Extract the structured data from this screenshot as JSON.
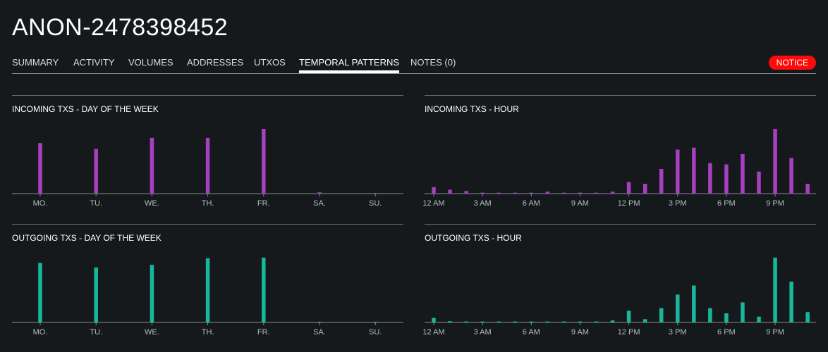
{
  "header": {
    "title": "ANON-2478398452"
  },
  "tabs": [
    {
      "label": "SUMMARY"
    },
    {
      "label": "ACTIVITY"
    },
    {
      "label": "VOLUMES"
    },
    {
      "label": "ADDRESSES"
    },
    {
      "label": "UTXOS"
    },
    {
      "label": "TEMPORAL PATTERNS"
    },
    {
      "label": "NOTES (0)"
    }
  ],
  "active_tab": "TEMPORAL PATTERNS",
  "notice": {
    "label": "NOTICE",
    "color": "#ff0a0a"
  },
  "colors": {
    "incoming": "#a63fc0",
    "outgoing": "#17b89a",
    "background": "#16191c"
  },
  "chart_data": [
    {
      "type": "bar",
      "title": "INCOMING TXS - DAY OF THE WEEK",
      "categories": [
        "MO.",
        "TU.",
        "WE.",
        "TH.",
        "FR.",
        "SA.",
        "SU."
      ],
      "values": [
        78,
        69,
        86,
        86,
        100,
        2,
        0.5
      ],
      "color": "#a63fc0",
      "grid": false,
      "legend": "none"
    },
    {
      "type": "bar",
      "title": "INCOMING TXS - HOUR",
      "categories": [
        "12 AM",
        "1 AM",
        "2 AM",
        "3 AM",
        "4 AM",
        "5 AM",
        "6 AM",
        "7 AM",
        "8 AM",
        "9 AM",
        "10 AM",
        "11 AM",
        "12 PM",
        "1 PM",
        "2 PM",
        "3 PM",
        "4 PM",
        "5 PM",
        "6 PM",
        "7 PM",
        "8 PM",
        "9 PM",
        "10 PM",
        "11 PM"
      ],
      "tick_labels": [
        "12 AM",
        "3 AM",
        "6 AM",
        "9 AM",
        "12 PM",
        "3 PM",
        "6 PM",
        "9 PM"
      ],
      "values": [
        10,
        6,
        4,
        1.5,
        1.5,
        1.5,
        1.5,
        3,
        1.5,
        1.5,
        1.5,
        3,
        18,
        15,
        38,
        68,
        71,
        47,
        45,
        61,
        34,
        100,
        55,
        15
      ],
      "color": "#a63fc0",
      "grid": false,
      "legend": "none"
    },
    {
      "type": "bar",
      "title": "OUTGOING TXS - DAY OF THE WEEK",
      "categories": [
        "MO.",
        "TU.",
        "WE.",
        "TH.",
        "FR.",
        "SA.",
        "SU."
      ],
      "values": [
        91,
        84,
        88,
        98,
        99,
        1,
        0.5
      ],
      "color": "#17b89a",
      "grid": false,
      "legend": "none"
    },
    {
      "type": "bar",
      "title": "OUTGOING TXS - HOUR",
      "categories": [
        "12 AM",
        "1 AM",
        "2 AM",
        "3 AM",
        "4 AM",
        "5 AM",
        "6 AM",
        "7 AM",
        "8 AM",
        "9 AM",
        "10 AM",
        "11 AM",
        "12 PM",
        "1 PM",
        "2 PM",
        "3 PM",
        "4 PM",
        "5 PM",
        "6 PM",
        "7 PM",
        "8 PM",
        "9 PM",
        "10 PM",
        "11 PM"
      ],
      "tick_labels": [
        "12 AM",
        "3 AM",
        "6 AM",
        "9 AM",
        "12 PM",
        "3 PM",
        "6 PM",
        "9 PM"
      ],
      "values": [
        7,
        2,
        1.5,
        1.5,
        1.5,
        1.5,
        1.5,
        1.5,
        1.5,
        1.5,
        1.5,
        3,
        18,
        5,
        22,
        43,
        57,
        22,
        14,
        31,
        9,
        100,
        63,
        16
      ],
      "color": "#17b89a",
      "grid": false,
      "legend": "none"
    }
  ]
}
